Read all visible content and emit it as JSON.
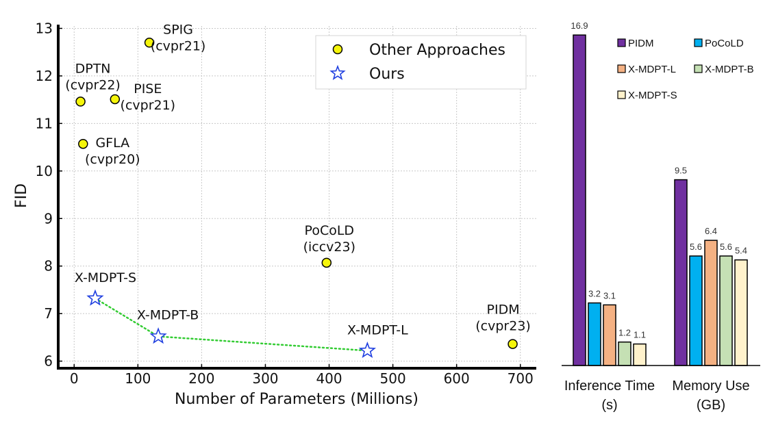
{
  "chart_data": [
    {
      "type": "scatter",
      "xlabel": "Number of Parameters (Millions)",
      "ylabel": "FID",
      "xlim": [
        -25,
        725
      ],
      "ylim": [
        5.85,
        13.05
      ],
      "xticks": [
        0,
        100,
        200,
        300,
        400,
        500,
        600,
        700
      ],
      "yticks": [
        6,
        7,
        8,
        9,
        10,
        11,
        12,
        13
      ],
      "grid": true,
      "legend_position": "top-right",
      "series": [
        {
          "name": "Other Approaches",
          "marker": "circle",
          "color": "#f5f50a",
          "points": [
            {
              "label": "SPIG",
              "venue": "(cvpr21)",
              "x": 118,
              "y": 12.7
            },
            {
              "label": "DPTN",
              "venue": "(cvpr22)",
              "x": 10,
              "y": 11.46
            },
            {
              "label": "PISE",
              "venue": "(cvpr21)",
              "x": 64,
              "y": 11.51
            },
            {
              "label": "GFLA",
              "venue": "(cvpr20)",
              "x": 14,
              "y": 10.57
            },
            {
              "label": "PoCoLD",
              "venue": "(iccv23)",
              "x": 396,
              "y": 8.07
            },
            {
              "label": "PIDM",
              "venue": "(cvpr23)",
              "x": 688,
              "y": 6.36
            }
          ]
        },
        {
          "name": "Ours",
          "marker": "star",
          "color": "#1f3fe0",
          "connector": "dotted-green",
          "points": [
            {
              "label": "X-MDPT-S",
              "x": 33,
              "y": 7.32
            },
            {
              "label": "X-MDPT-B",
              "x": 132,
              "y": 6.52
            },
            {
              "label": "X-MDPT-L",
              "x": 460,
              "y": 6.22
            }
          ]
        }
      ]
    },
    {
      "type": "bar",
      "categories": [
        "Inference Time\n(s)",
        "Memory Use\n(GB)"
      ],
      "category_lines": [
        [
          "Inference Time",
          "(s)"
        ],
        [
          "Memory Use",
          "(GB)"
        ]
      ],
      "ylim": [
        0,
        17.5
      ],
      "grid": false,
      "legend_position": "top-right",
      "series": [
        {
          "name": "PIDM",
          "color": "#7030a0",
          "values": [
            16.9,
            9.5
          ]
        },
        {
          "name": "PoCoLD",
          "color": "#00b0f0",
          "values": [
            3.2,
            5.6
          ]
        },
        {
          "name": "X-MDPT-L",
          "color": "#f4b183",
          "values": [
            3.1,
            6.4
          ]
        },
        {
          "name": "X-MDPT-B",
          "color": "#c5e0b4",
          "values": [
            1.2,
            5.6
          ]
        },
        {
          "name": "X-MDPT-S",
          "color": "#fff2cc",
          "values": [
            1.1,
            5.4
          ]
        }
      ]
    }
  ]
}
